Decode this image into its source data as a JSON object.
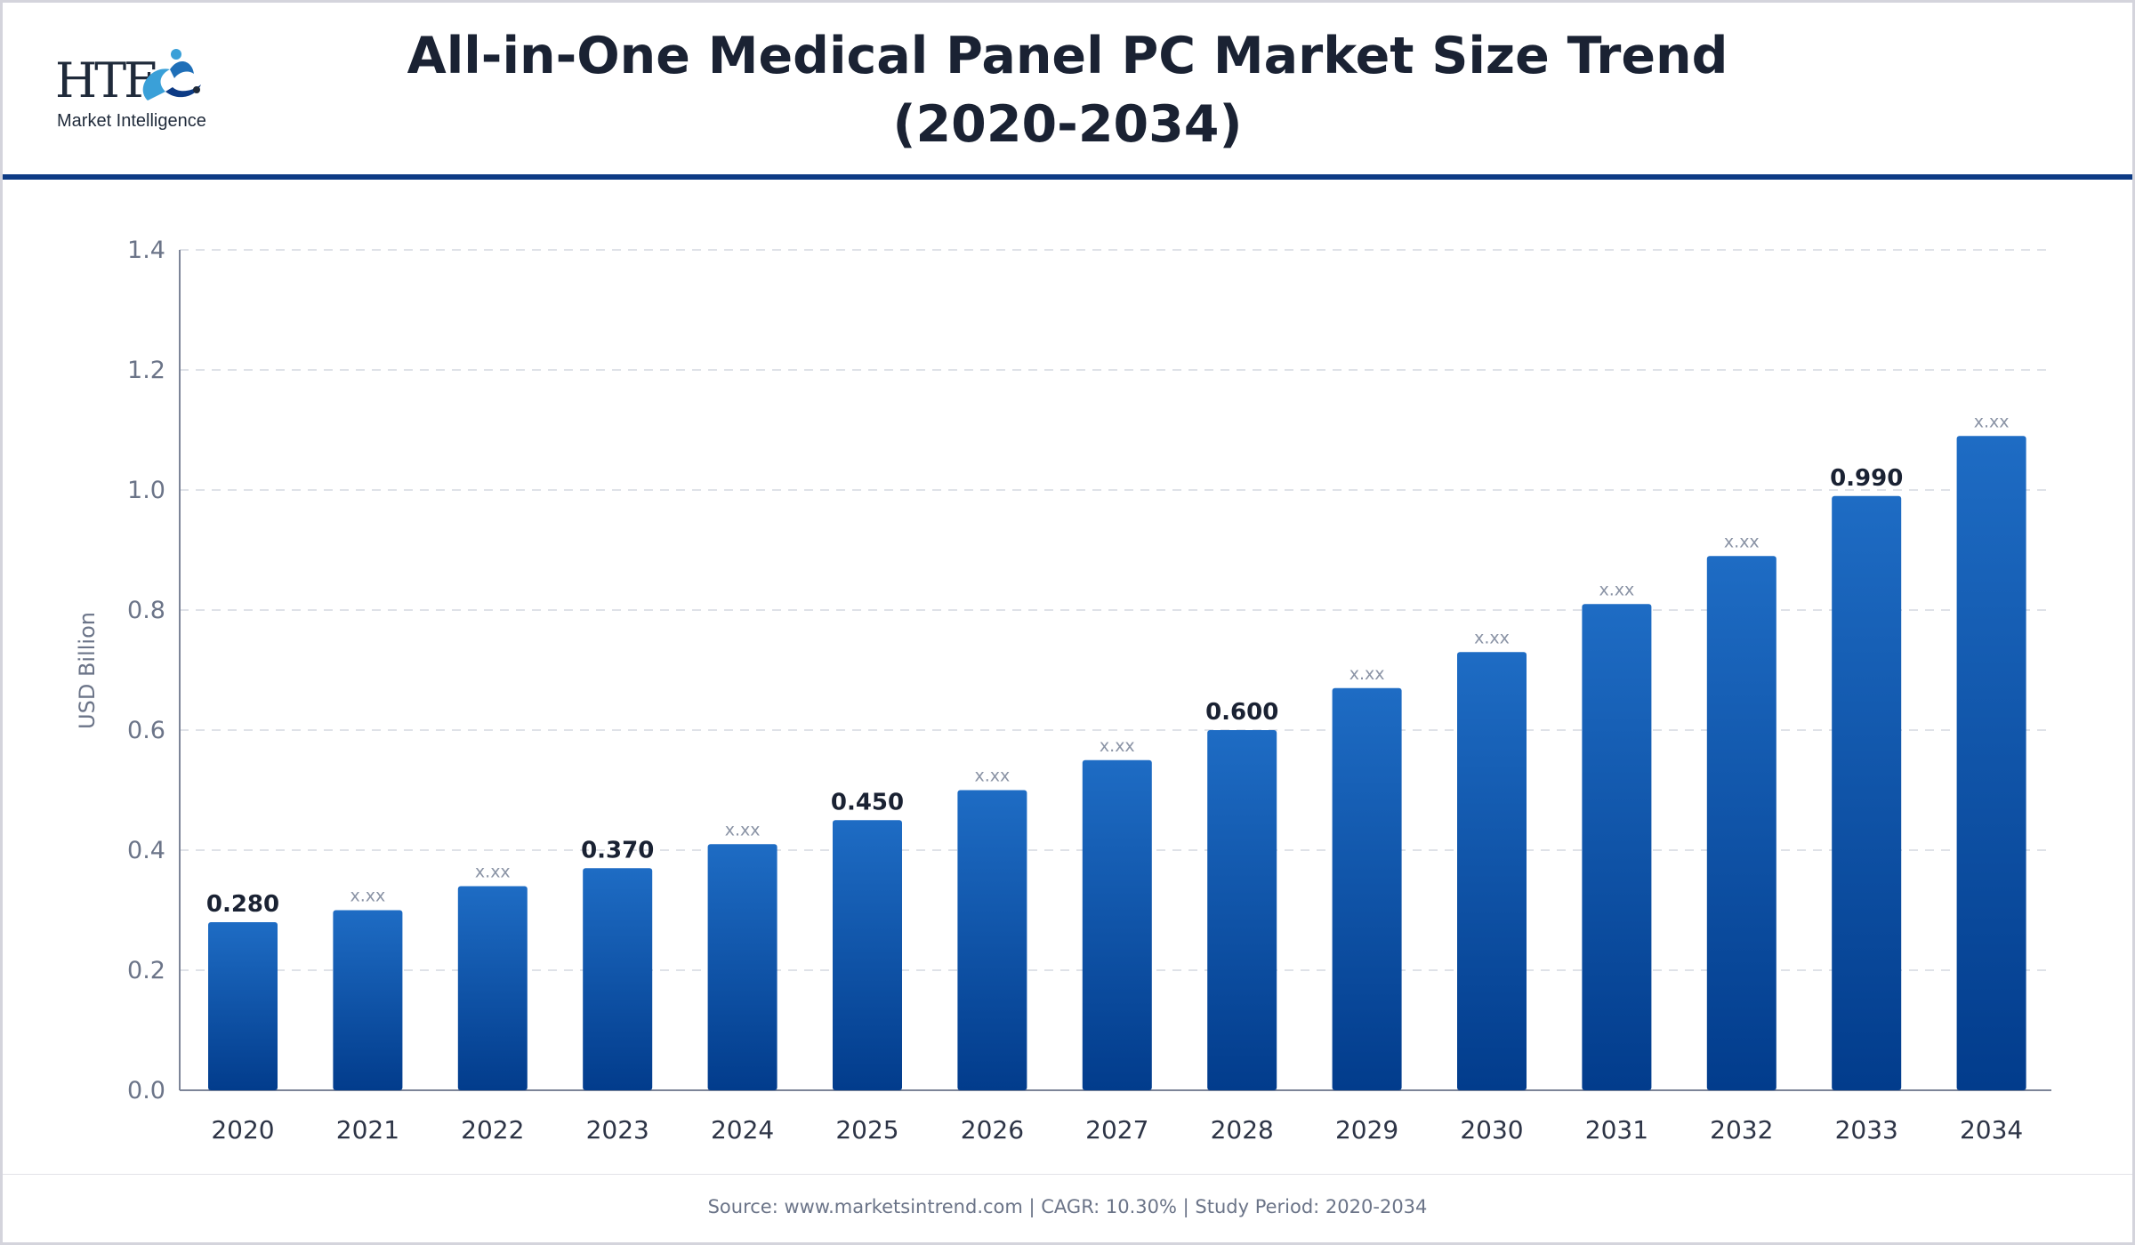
{
  "header": {
    "logo_text": "HTF",
    "logo_sub": "Market Intelligence",
    "title_line1": "All-in-One Medical Panel PC Market Size Trend",
    "title_line2": "(2020-2034)"
  },
  "colors": {
    "bar_top": "#1e6cc4",
    "bar_bottom": "#023c8c",
    "rule": "#0d3b85",
    "axis_text": "#6b7488",
    "label_dark": "#1a2233",
    "placeholder_label": "#8a93a5"
  },
  "chart_data": {
    "type": "bar",
    "categories": [
      "2020",
      "2021",
      "2022",
      "2023",
      "2024",
      "2025",
      "2026",
      "2027",
      "2028",
      "2029",
      "2030",
      "2031",
      "2032",
      "2033",
      "2034"
    ],
    "values": [
      0.28,
      0.3,
      0.34,
      0.37,
      0.41,
      0.45,
      0.5,
      0.55,
      0.6,
      0.67,
      0.73,
      0.81,
      0.89,
      0.99,
      1.09
    ],
    "data_labels": [
      "0.280",
      "x.xx",
      "x.xx",
      "0.370",
      "x.xx",
      "0.450",
      "x.xx",
      "x.xx",
      "0.600",
      "x.xx",
      "x.xx",
      "x.xx",
      "x.xx",
      "0.990",
      "x.xx"
    ],
    "ylabel": "USD Billion",
    "xlabel": "",
    "ylim": [
      0,
      1.4
    ],
    "yticks": [
      "0.0",
      "0.2",
      "0.4",
      "0.6",
      "0.8",
      "1.0",
      "1.2",
      "1.4"
    ],
    "grid": true
  },
  "footer": {
    "text": "Source: www.marketsintrend.com  |  CAGR: 10.30%  |  Study Period: 2020-2034"
  }
}
